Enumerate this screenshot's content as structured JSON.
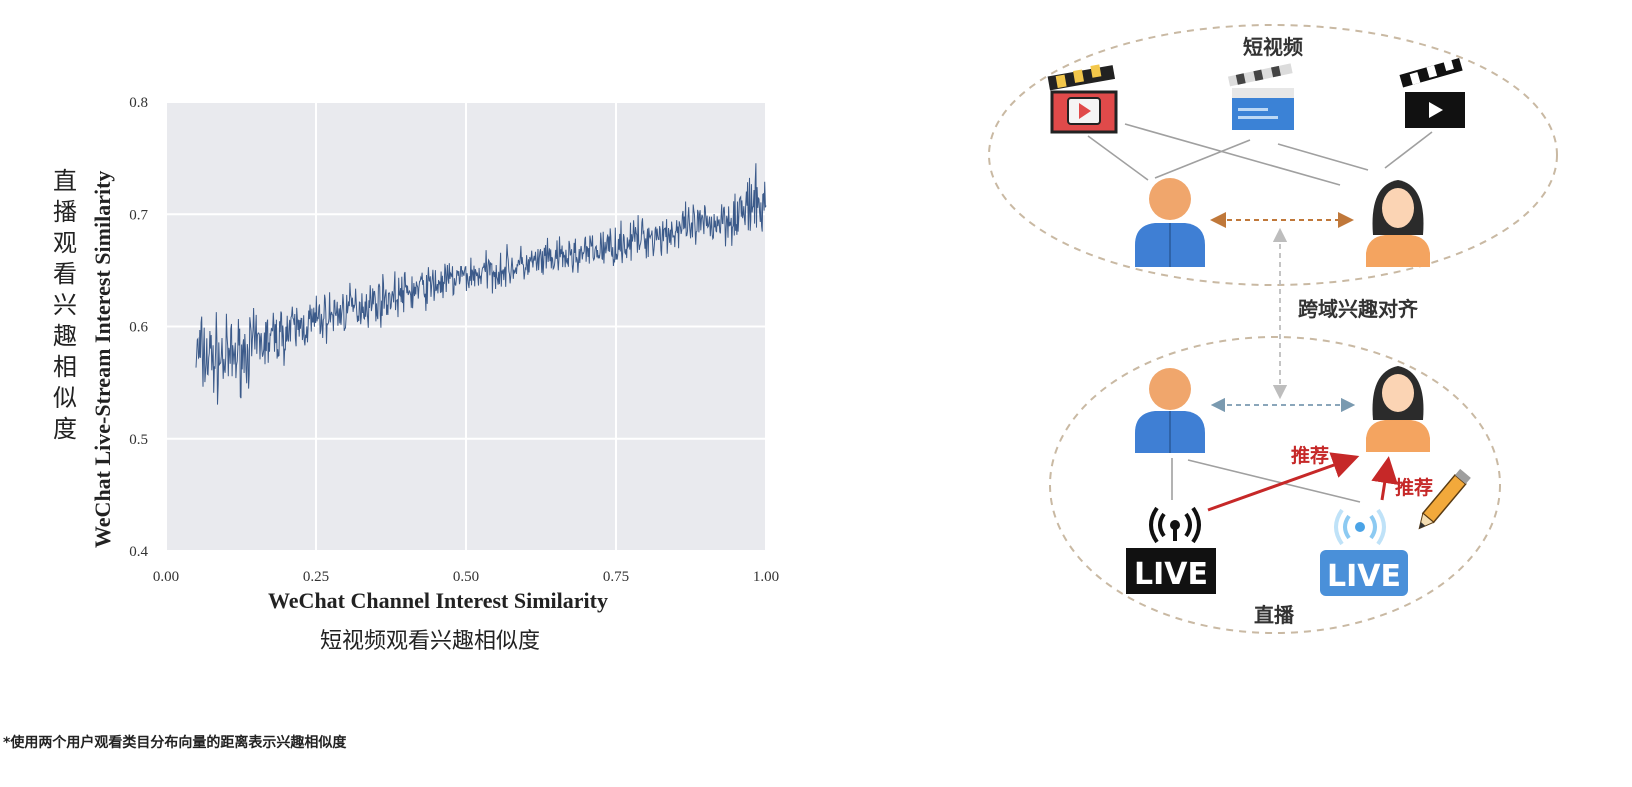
{
  "chart_data": {
    "type": "line",
    "xlabel": "WeChat Channel Interest Similarity",
    "xlabel_cn": "短视频观看兴趣相似度",
    "ylabel": "WeChat Live-Stream Interest Similarity",
    "ylabel_cn": "直播观看兴趣相似度",
    "xlim": [
      0.0,
      1.0
    ],
    "ylim": [
      0.4,
      0.8
    ],
    "xticks": [
      "0.00",
      "0.25",
      "0.50",
      "0.75",
      "1.00"
    ],
    "yticks": [
      "0.4",
      "0.5",
      "0.6",
      "0.7",
      "0.8"
    ],
    "grid": true,
    "color": "#3b5a8a",
    "background": "#e9eaee",
    "trend_x": [
      0.05,
      0.1,
      0.2,
      0.3,
      0.4,
      0.5,
      0.6,
      0.7,
      0.8,
      0.9,
      1.0
    ],
    "trend_y": [
      0.575,
      0.57,
      0.595,
      0.615,
      0.63,
      0.645,
      0.655,
      0.665,
      0.68,
      0.69,
      0.71
    ],
    "noise_amplitude": [
      0.06,
      0.05,
      0.035,
      0.03,
      0.028,
      0.025,
      0.025,
      0.025,
      0.028,
      0.03,
      0.045
    ]
  },
  "diagram": {
    "short_video_label": "短视频",
    "alignment_label": "跨域兴趣对齐",
    "live_label": "直播",
    "recommend_label_1": "推荐",
    "recommend_label_2": "推荐",
    "live_badge_1": "LIVE",
    "live_badge_2": "LIVE",
    "icons": [
      "clapperboard-red-icon",
      "clapperboard-blue-icon",
      "clapperboard-black-icon",
      "male-user-icon",
      "female-user-icon",
      "broadcast-icon",
      "pencil-icon"
    ],
    "colors": {
      "dashed_ellipse": "#c9b9a3",
      "orange_arrow": "#c0783a",
      "red_arrow": "#c62828",
      "gray_line": "#9e9e9e",
      "blue_arrow": "#7a9ab0"
    }
  },
  "footnote": "*使用两个用户观看类目分布向量的距离表示兴趣相似度"
}
